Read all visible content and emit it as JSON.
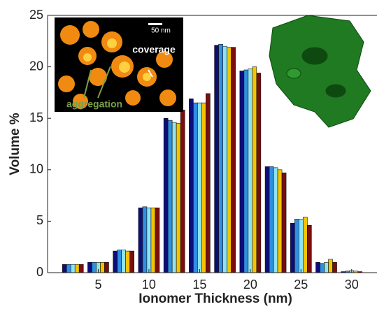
{
  "chart_data": {
    "type": "bar",
    "xlabel": "Ionomer Thickness (nm)",
    "ylabel": "Volume %",
    "x": [
      2.5,
      5,
      7.5,
      10,
      12.5,
      15,
      17.5,
      20,
      22.5,
      25,
      27.5,
      30
    ],
    "xlim": [
      0,
      32.5
    ],
    "xticks": [
      5,
      10,
      15,
      20,
      25,
      30
    ],
    "ylim": [
      0,
      25
    ],
    "yticks": [
      0,
      5,
      10,
      15,
      20,
      25
    ],
    "series": [
      {
        "color": "#0d0d7a",
        "values": [
          0.8,
          1.0,
          2.1,
          6.3,
          15.0,
          16.9,
          22.1,
          19.6,
          10.3,
          4.8,
          1.0,
          0.1
        ]
      },
      {
        "color": "#2f8fe0",
        "values": [
          0.8,
          1.0,
          2.2,
          6.4,
          14.8,
          16.5,
          22.2,
          19.7,
          10.3,
          5.2,
          0.9,
          0.15
        ]
      },
      {
        "color": "#8fe3f0",
        "values": [
          0.8,
          1.0,
          2.2,
          6.3,
          14.6,
          16.5,
          22.0,
          19.8,
          10.2,
          5.2,
          1.0,
          0.2
        ]
      },
      {
        "color": "#f5c400",
        "values": [
          0.8,
          1.0,
          2.1,
          6.3,
          14.5,
          16.5,
          21.9,
          20.0,
          10.0,
          5.4,
          1.3,
          0.15
        ]
      },
      {
        "color": "#7a0d0d",
        "values": [
          0.8,
          1.0,
          2.1,
          6.3,
          15.8,
          17.4,
          21.9,
          19.4,
          9.7,
          4.6,
          1.0,
          0.1
        ]
      }
    ],
    "annotations": [
      "50 nm",
      "coverage",
      "aggregation"
    ]
  }
}
